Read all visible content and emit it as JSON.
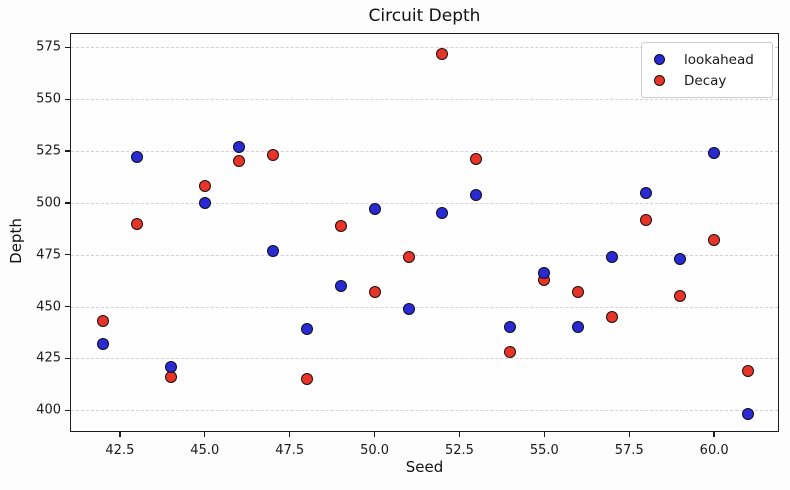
{
  "title": "Circuit Depth",
  "axes": {
    "xlabel": "Seed",
    "ylabel": "Depth"
  },
  "colors": {
    "lookahead": "#2a2ad2",
    "decay": "#e63428",
    "gridline": "#d5cfd7",
    "spine": "#1c1c1c",
    "background": "#fdfdfd"
  },
  "legend": {
    "position": "upper-right"
  },
  "chart_data": {
    "type": "scatter",
    "title": "Circuit Depth",
    "xlabel": "Seed",
    "ylabel": "Depth",
    "xlim": [
      41.06,
      61.88
    ],
    "ylim": [
      390,
      581.5
    ],
    "xticks": [
      42.5,
      45.0,
      47.5,
      50.0,
      52.5,
      55.0,
      57.5,
      60.0
    ],
    "yticks": [
      400,
      425,
      450,
      475,
      500,
      525,
      550,
      575
    ],
    "grid": "horizontal-dashed",
    "legend_position": "upper right",
    "x": [
      42,
      43,
      44,
      45,
      46,
      47,
      48,
      49,
      50,
      51,
      52,
      53,
      54,
      55,
      56,
      57,
      58,
      59,
      60,
      61
    ],
    "series": [
      {
        "name": "lookahead",
        "color": "#2a2ad2",
        "values": [
          432,
          522,
          421,
          500,
          527,
          477,
          439,
          460,
          497,
          449,
          495,
          504,
          440,
          466,
          440,
          474,
          505,
          473,
          524,
          398
        ]
      },
      {
        "name": "Decay",
        "color": "#e63428",
        "values": [
          443,
          490,
          416,
          508,
          520,
          523,
          415,
          489,
          457,
          474,
          572,
          521,
          428,
          463,
          457,
          445,
          492,
          455,
          482,
          419
        ]
      }
    ]
  }
}
